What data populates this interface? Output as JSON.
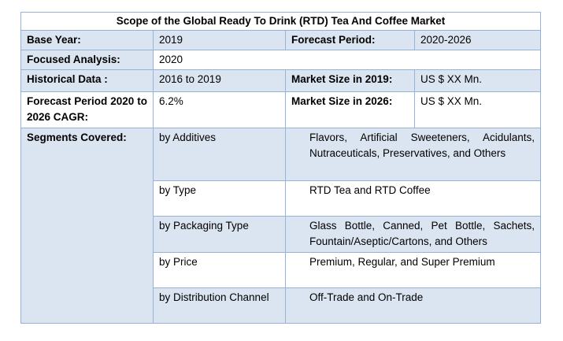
{
  "title": "Scope of the Global Ready To Drink (RTD) Tea And Coffee Market",
  "rows": [
    [
      "Base Year:",
      "2019",
      "Forecast Period:",
      "2020-2026"
    ],
    [
      "Focused Analysis:",
      "2020"
    ],
    [
      "Historical Data :",
      "2016 to 2019",
      "Market Size in 2019:",
      "US $ XX Mn."
    ],
    [
      "Forecast Period 2020 to 2026 CAGR:",
      "6.2%",
      "Market Size in 2026:",
      "US $ XX Mn."
    ]
  ],
  "segments": {
    "label": "Segments Covered:",
    "items": [
      [
        "by Additives",
        "Flavors, Artificial Sweeteners, Acidulants, Nutraceuticals, Preservatives, and Others"
      ],
      [
        "by Type",
        "RTD Tea and RTD Coffee"
      ],
      [
        "by Packaging Type",
        "Glass Bottle, Canned, Pet Bottle, Sachets, Fountain/Aseptic/Cartons, and Others"
      ],
      [
        "by Price",
        "Premium, Regular, and Super Premium"
      ],
      [
        "by Distribution Channel",
        "Off-Trade and On-Trade"
      ]
    ]
  }
}
